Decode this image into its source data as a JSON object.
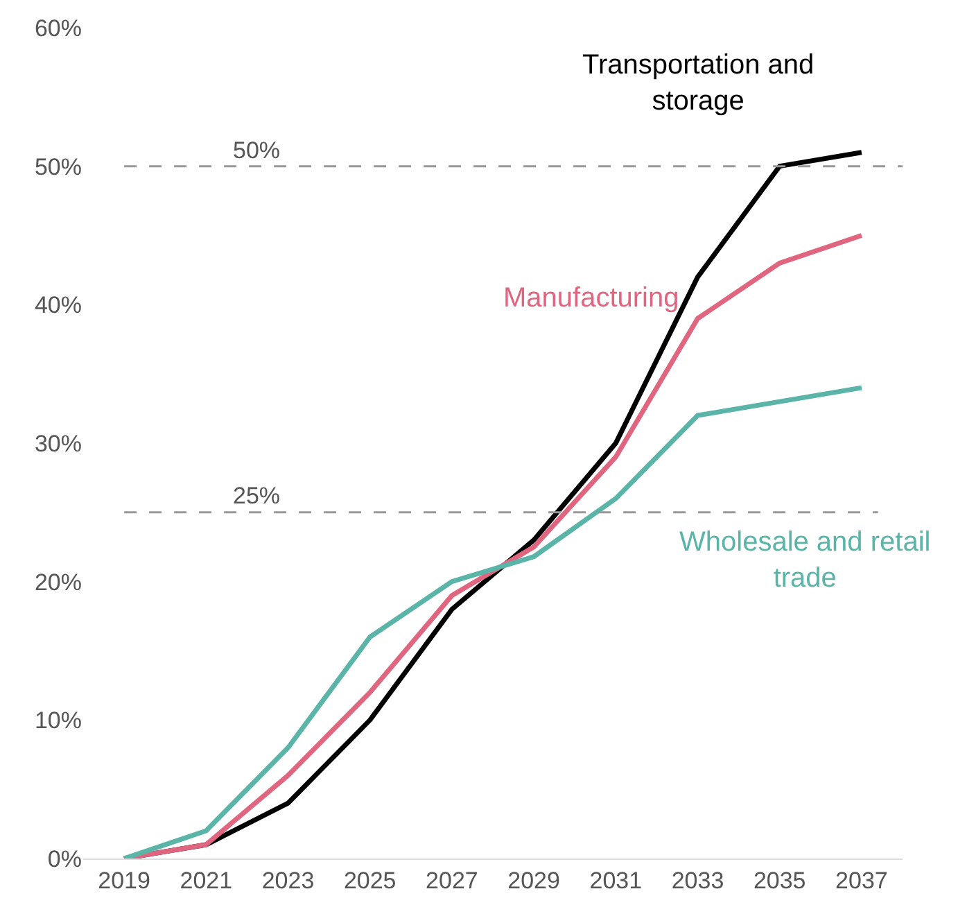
{
  "chart_data": {
    "type": "line",
    "categories": [
      "2019",
      "2021",
      "2023",
      "2025",
      "2027",
      "2029",
      "2031",
      "2033",
      "2035",
      "2037"
    ],
    "series": [
      {
        "name": "Transportation and storage",
        "color": "#000000",
        "values": [
          0,
          1,
          4,
          10,
          18,
          23,
          30,
          42,
          50,
          51
        ]
      },
      {
        "name": "Manufacturing",
        "color": "#e06680",
        "values": [
          0,
          1,
          6,
          12,
          19,
          22.5,
          29,
          39,
          43,
          45
        ]
      },
      {
        "name": "Wholesale and retail trade",
        "color": "#5ab4a8",
        "values": [
          0,
          2,
          8,
          16,
          20,
          21.8,
          26,
          32,
          33,
          34
        ]
      }
    ],
    "ylim": [
      0,
      60
    ],
    "yticks": [
      {
        "value": 0,
        "label": "0%"
      },
      {
        "value": 10,
        "label": "10%"
      },
      {
        "value": 20,
        "label": "20%"
      },
      {
        "value": 30,
        "label": "30%"
      },
      {
        "value": 40,
        "label": "40%"
      },
      {
        "value": 50,
        "label": "50%"
      },
      {
        "value": 60,
        "label": "60%"
      }
    ],
    "ref_lines": [
      {
        "axis": "y",
        "value": 50,
        "label": "50%",
        "color": "#999999",
        "line_style": "dashed"
      },
      {
        "axis": "y",
        "value": 25,
        "label": "25%",
        "color": "#999999",
        "line_style": "dashed"
      }
    ],
    "legend": false,
    "marker": "none",
    "line_style": "solid"
  }
}
